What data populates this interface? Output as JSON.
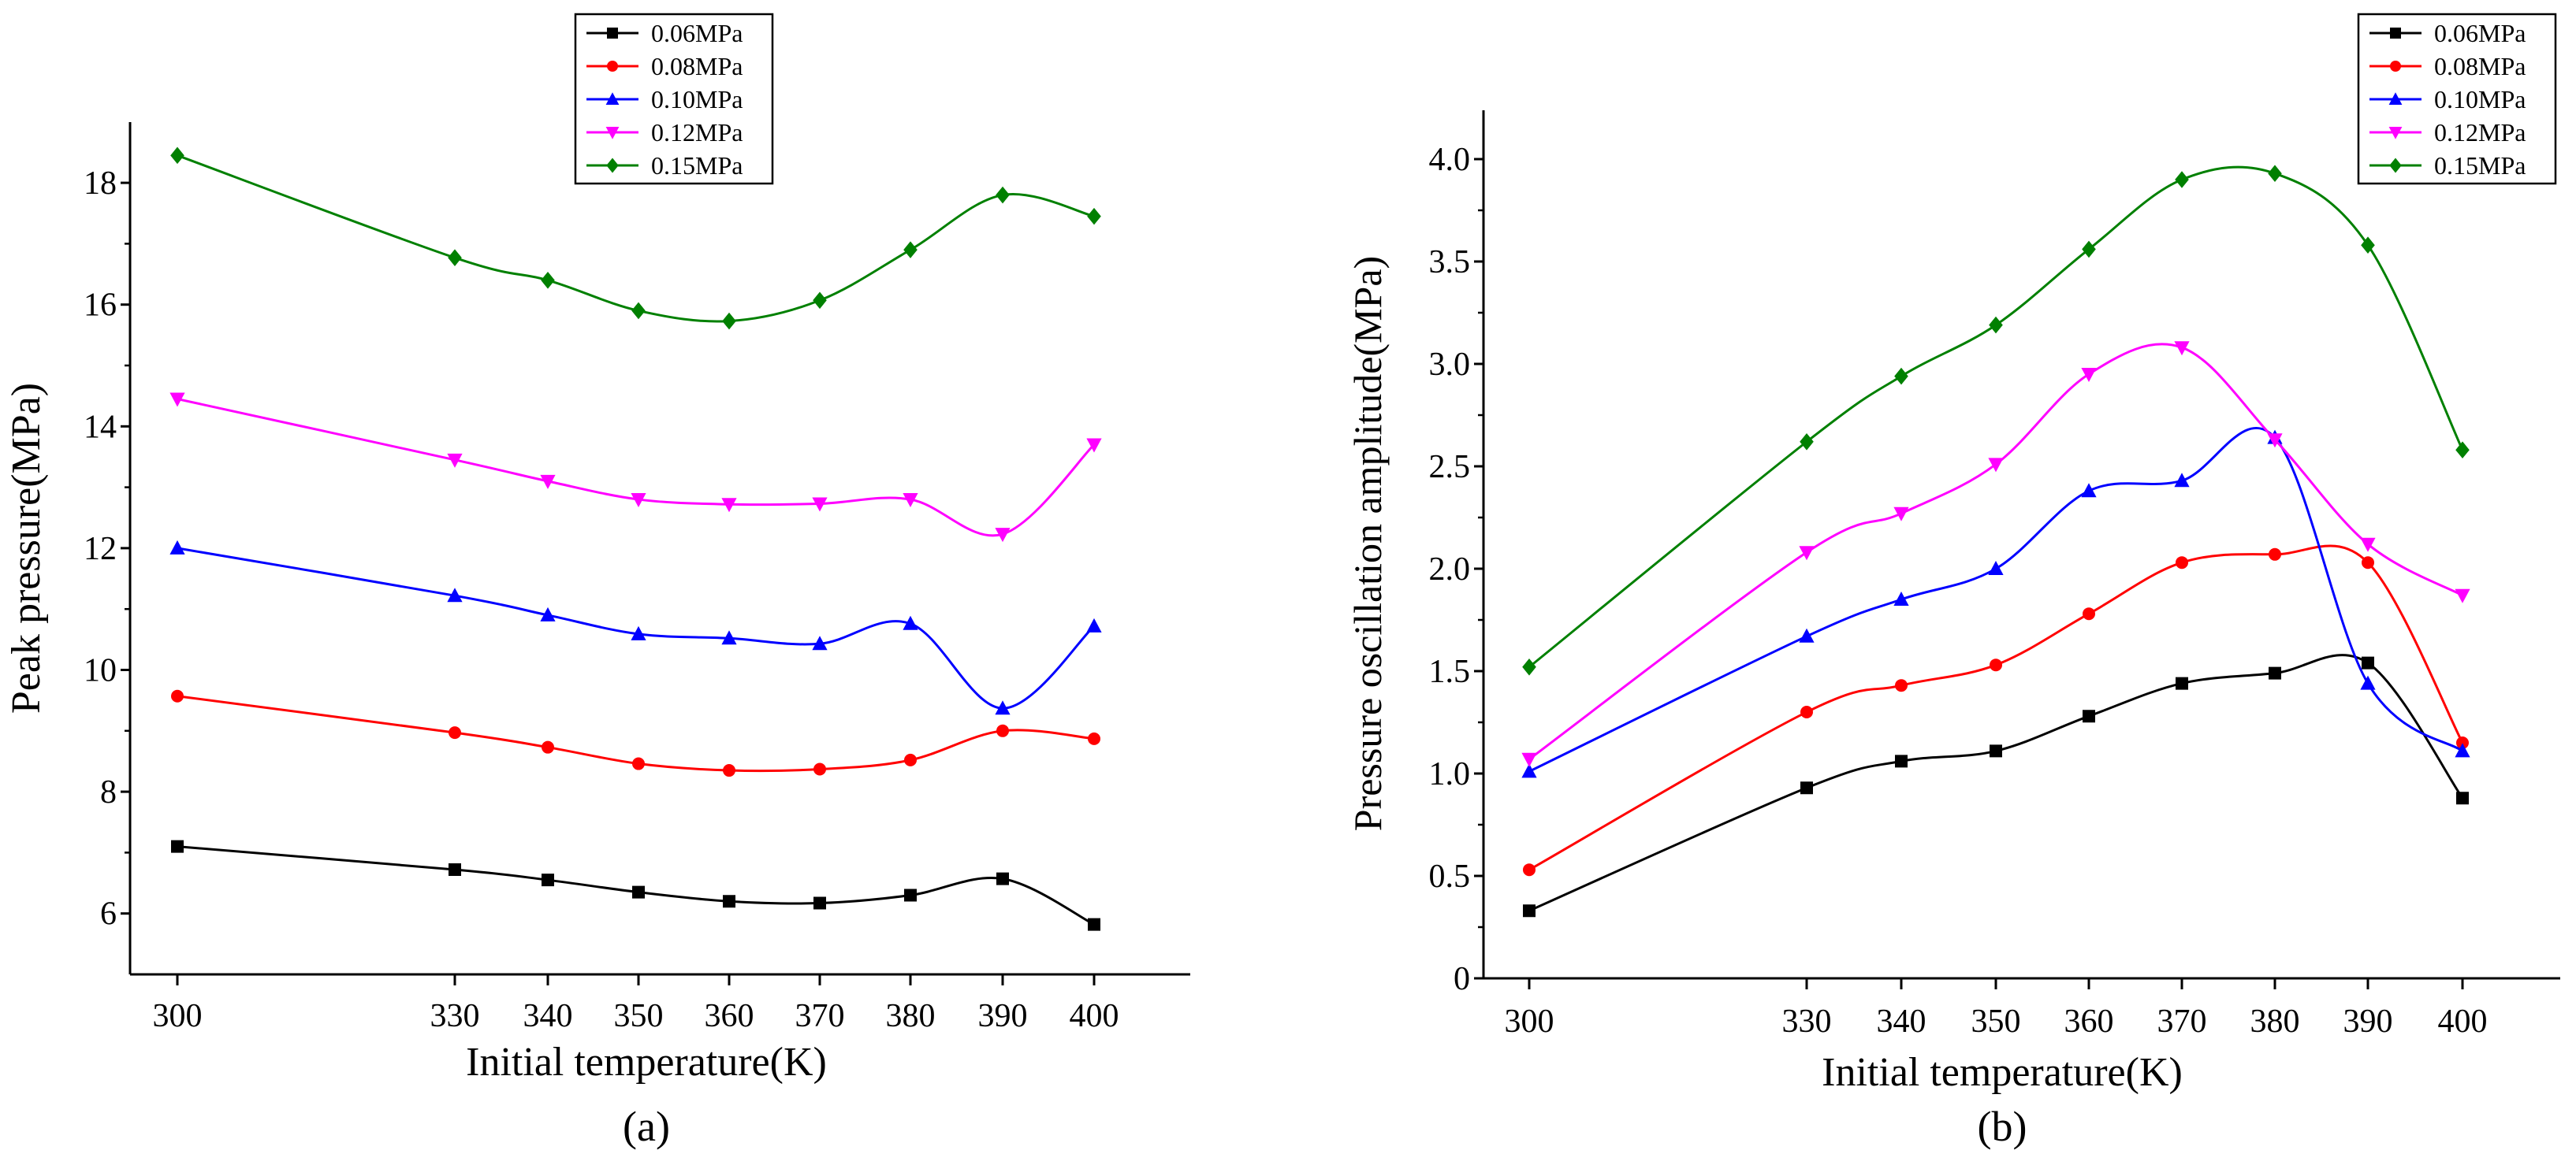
{
  "chart_data": [
    {
      "type": "line",
      "panel_label": "(a)",
      "xlabel": "Initial temperature(K)",
      "ylabel": "Peak pressure(MPa)",
      "x": [
        300,
        330,
        340,
        350,
        360,
        370,
        380,
        390,
        400
      ],
      "x_tick_labels": [
        "300",
        "330",
        "340",
        "350",
        "360",
        "370",
        "380",
        "390",
        "400"
      ],
      "y_ticks": [
        6,
        8,
        10,
        12,
        14,
        16,
        18
      ],
      "y_tick_labels": [
        "6",
        "8",
        "10",
        "12",
        "14",
        "16",
        "18"
      ],
      "ylim": [
        5,
        19
      ],
      "legend_position": "top-center",
      "series": [
        {
          "name": "0.06MPa",
          "color": "#000000",
          "marker": "square",
          "values": [
            7.1,
            6.72,
            6.55,
            6.35,
            6.2,
            6.17,
            6.3,
            6.57,
            5.82
          ]
        },
        {
          "name": "0.08MPa",
          "color": "#ff0000",
          "marker": "circle",
          "values": [
            9.57,
            8.97,
            8.73,
            8.46,
            8.35,
            8.37,
            8.52,
            9.0,
            8.87
          ]
        },
        {
          "name": "0.10MPa",
          "color": "#0000ff",
          "marker": "triangle-up",
          "values": [
            12.0,
            11.22,
            10.9,
            10.59,
            10.52,
            10.43,
            10.76,
            9.37,
            10.72
          ]
        },
        {
          "name": "0.12MPa",
          "color": "#ff00ff",
          "marker": "triangle-down",
          "values": [
            14.45,
            13.45,
            13.1,
            12.8,
            12.72,
            12.73,
            12.8,
            12.23,
            13.7
          ]
        },
        {
          "name": "0.15MPa",
          "color": "#008000",
          "marker": "diamond",
          "values": [
            18.45,
            16.77,
            16.4,
            15.9,
            15.73,
            16.07,
            16.9,
            17.8,
            17.45
          ]
        }
      ]
    },
    {
      "type": "line",
      "panel_label": "(b)",
      "xlabel": "Initial temperature(K)",
      "ylabel": "Pressure oscillation amplitude(MPa)",
      "x": [
        300,
        330,
        340,
        350,
        360,
        370,
        380,
        390,
        400
      ],
      "x_tick_labels": [
        "300",
        "330",
        "340",
        "350",
        "360",
        "370",
        "380",
        "390",
        "400"
      ],
      "y_ticks": [
        0,
        0.5,
        1.0,
        1.5,
        2.0,
        2.5,
        3.0,
        3.5,
        4.0
      ],
      "y_tick_labels": [
        "0",
        "0.5",
        "1.0",
        "1.5",
        "2.0",
        "2.5",
        "3.0",
        "3.5",
        "4.0"
      ],
      "ylim": [
        0,
        4.25
      ],
      "legend_position": "top-right",
      "series": [
        {
          "name": "0.06MPa",
          "color": "#000000",
          "marker": "square",
          "values": [
            0.33,
            0.93,
            1.06,
            1.11,
            1.28,
            1.44,
            1.49,
            1.54,
            0.88
          ]
        },
        {
          "name": "0.08MPa",
          "color": "#ff0000",
          "marker": "circle",
          "values": [
            0.53,
            1.3,
            1.43,
            1.53,
            1.78,
            2.03,
            2.07,
            2.03,
            1.15
          ]
        },
        {
          "name": "0.10MPa",
          "color": "#0000ff",
          "marker": "triangle-up",
          "values": [
            1.01,
            1.67,
            1.85,
            2.0,
            2.38,
            2.43,
            2.64,
            1.44,
            1.11
          ]
        },
        {
          "name": "0.12MPa",
          "color": "#ff00ff",
          "marker": "triangle-down",
          "values": [
            1.07,
            2.08,
            2.27,
            2.51,
            2.95,
            3.08,
            2.63,
            2.12,
            1.87
          ]
        },
        {
          "name": "0.15MPa",
          "color": "#008000",
          "marker": "diamond",
          "values": [
            1.52,
            2.62,
            2.94,
            3.19,
            3.56,
            3.9,
            3.93,
            3.58,
            2.58
          ]
        }
      ]
    }
  ]
}
